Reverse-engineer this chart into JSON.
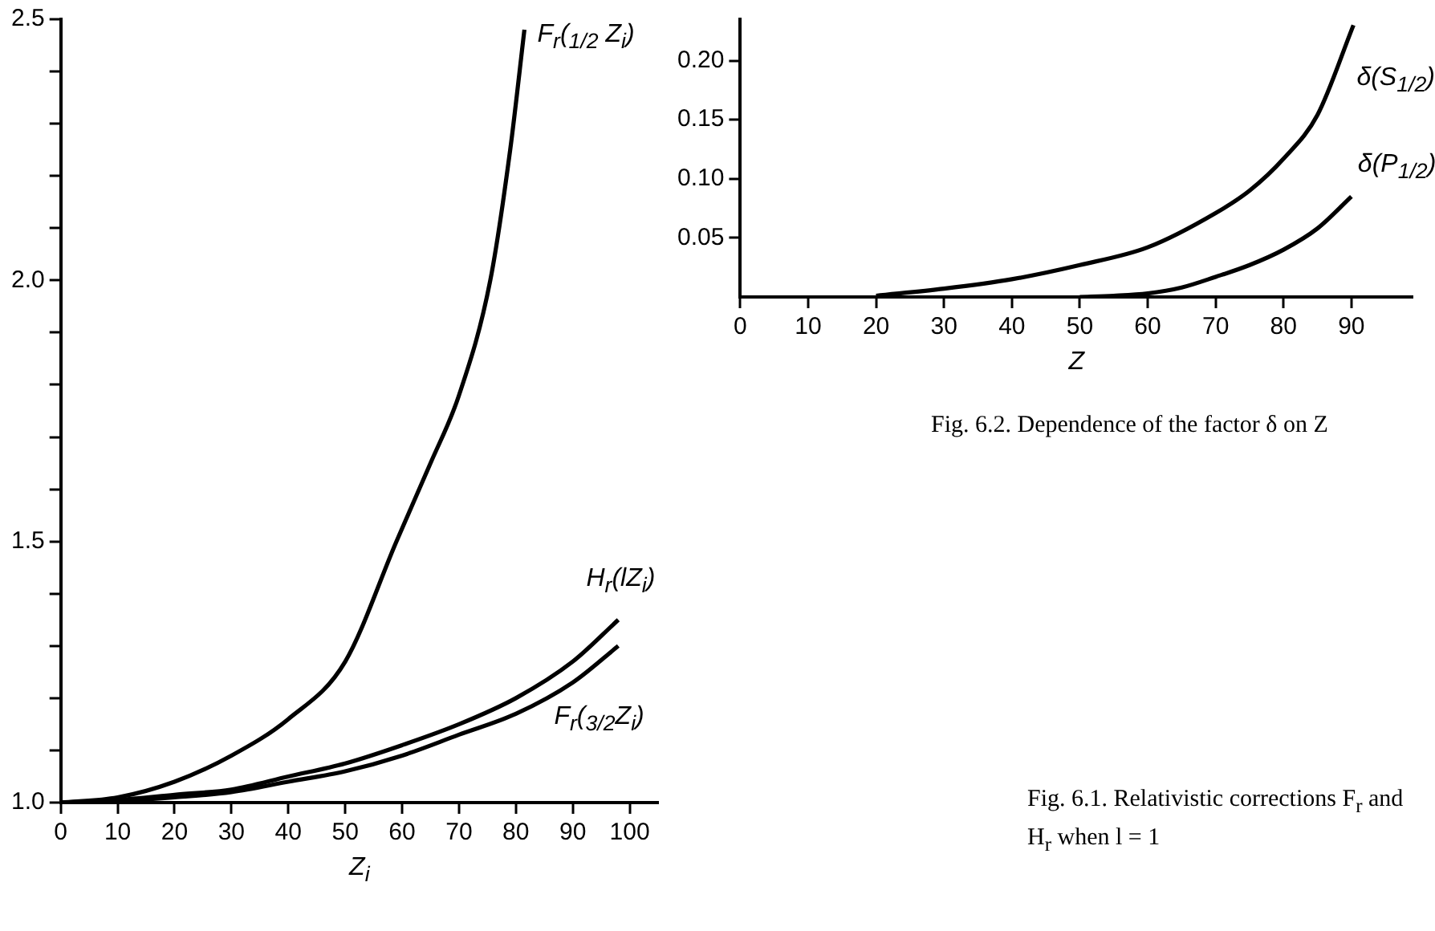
{
  "chart_data": [
    {
      "type": "line",
      "xlabel": "Z$_{i}$",
      "xlim": [
        0,
        105
      ],
      "ylim": [
        1.0,
        2.5
      ],
      "xticks": [
        0,
        10,
        20,
        30,
        40,
        50,
        60,
        70,
        80,
        90,
        100
      ],
      "yticks": [
        {
          "value": 1.0,
          "label": "1.0"
        },
        {
          "value": 1.1,
          "label": null
        },
        {
          "value": 1.2,
          "label": null
        },
        {
          "value": 1.3,
          "label": null
        },
        {
          "value": 1.4,
          "label": null
        },
        1.5,
        {
          "value": 1.6,
          "label": null
        },
        {
          "value": 1.7,
          "label": null
        },
        {
          "value": 1.8,
          "label": null
        },
        {
          "value": 1.9,
          "label": null
        },
        {
          "value": 2.0,
          "label": "2.0"
        },
        {
          "value": 2.1,
          "label": null
        },
        {
          "value": 2.2,
          "label": null
        },
        {
          "value": 2.3,
          "label": null
        },
        {
          "value": 2.4,
          "label": null
        },
        2.5
      ],
      "legend": false,
      "marker": "none",
      "line_style": "solid",
      "series": [
        {
          "name": "F$_{r}$($_{1/2}$ Z$_{i}$)",
          "color": "#000000",
          "x": [
            0,
            10,
            20,
            30,
            40,
            50,
            59,
            65,
            70,
            75.5,
            79,
            81.5
          ],
          "values": [
            1.0,
            1.01,
            1.04,
            1.09,
            1.16,
            1.27,
            1.5,
            1.65,
            1.78,
            2.0,
            2.25,
            2.48
          ]
        },
        {
          "name": "H$_{r}$(lZ$_{i}$)",
          "color": "#000000",
          "x": [
            0,
            10,
            20,
            30,
            40,
            50,
            60,
            70,
            80,
            90,
            98
          ],
          "values": [
            1.0,
            1.005,
            1.015,
            1.025,
            1.05,
            1.075,
            1.11,
            1.15,
            1.2,
            1.27,
            1.35
          ]
        },
        {
          "name": "F$_{r}$($_{3/2}$Z$_{i}$)",
          "color": "#000000",
          "x": [
            0,
            10,
            20,
            30,
            40,
            50,
            60,
            70,
            80,
            90,
            98
          ],
          "values": [
            1.0,
            1.003,
            1.01,
            1.02,
            1.04,
            1.06,
            1.09,
            1.13,
            1.17,
            1.23,
            1.3
          ]
        }
      ],
      "annotations": [
        "Fig. 6.1. Relativistic corrections F$_{r}$ and H$_{r}$ when  l = 1"
      ]
    },
    {
      "type": "line",
      "xlabel": "Z",
      "xlim": [
        0,
        99
      ],
      "ylim": [
        0,
        0.235
      ],
      "xticks": [
        0,
        10,
        20,
        30,
        40,
        50,
        60,
        70,
        80,
        90
      ],
      "yticks": [
        0.05,
        {
          "value": 0.1,
          "label": "0.10"
        },
        0.15,
        {
          "value": 0.2,
          "label": "0.20"
        }
      ],
      "legend": false,
      "marker": "none",
      "line_style": "solid",
      "series": [
        {
          "name": "δ(S$_{1/2}$)",
          "color": "#000000",
          "x": [
            20,
            30,
            40,
            50,
            60,
            70,
            75,
            80,
            85,
            90.3
          ],
          "values": [
            0.001,
            0.007,
            0.015,
            0.027,
            0.042,
            0.071,
            0.09,
            0.117,
            0.154,
            0.23
          ]
        },
        {
          "name": "δ(P$_{1/2}$)",
          "color": "#000000",
          "x": [
            50,
            55,
            60,
            65,
            70,
            75,
            80,
            85,
            90
          ],
          "values": [
            0,
            0.001,
            0.003,
            0.008,
            0.017,
            0.027,
            0.04,
            0.058,
            0.085
          ]
        }
      ],
      "annotations": [
        "Fig. 6.2. Dependence of the factor δ on Z"
      ]
    }
  ]
}
